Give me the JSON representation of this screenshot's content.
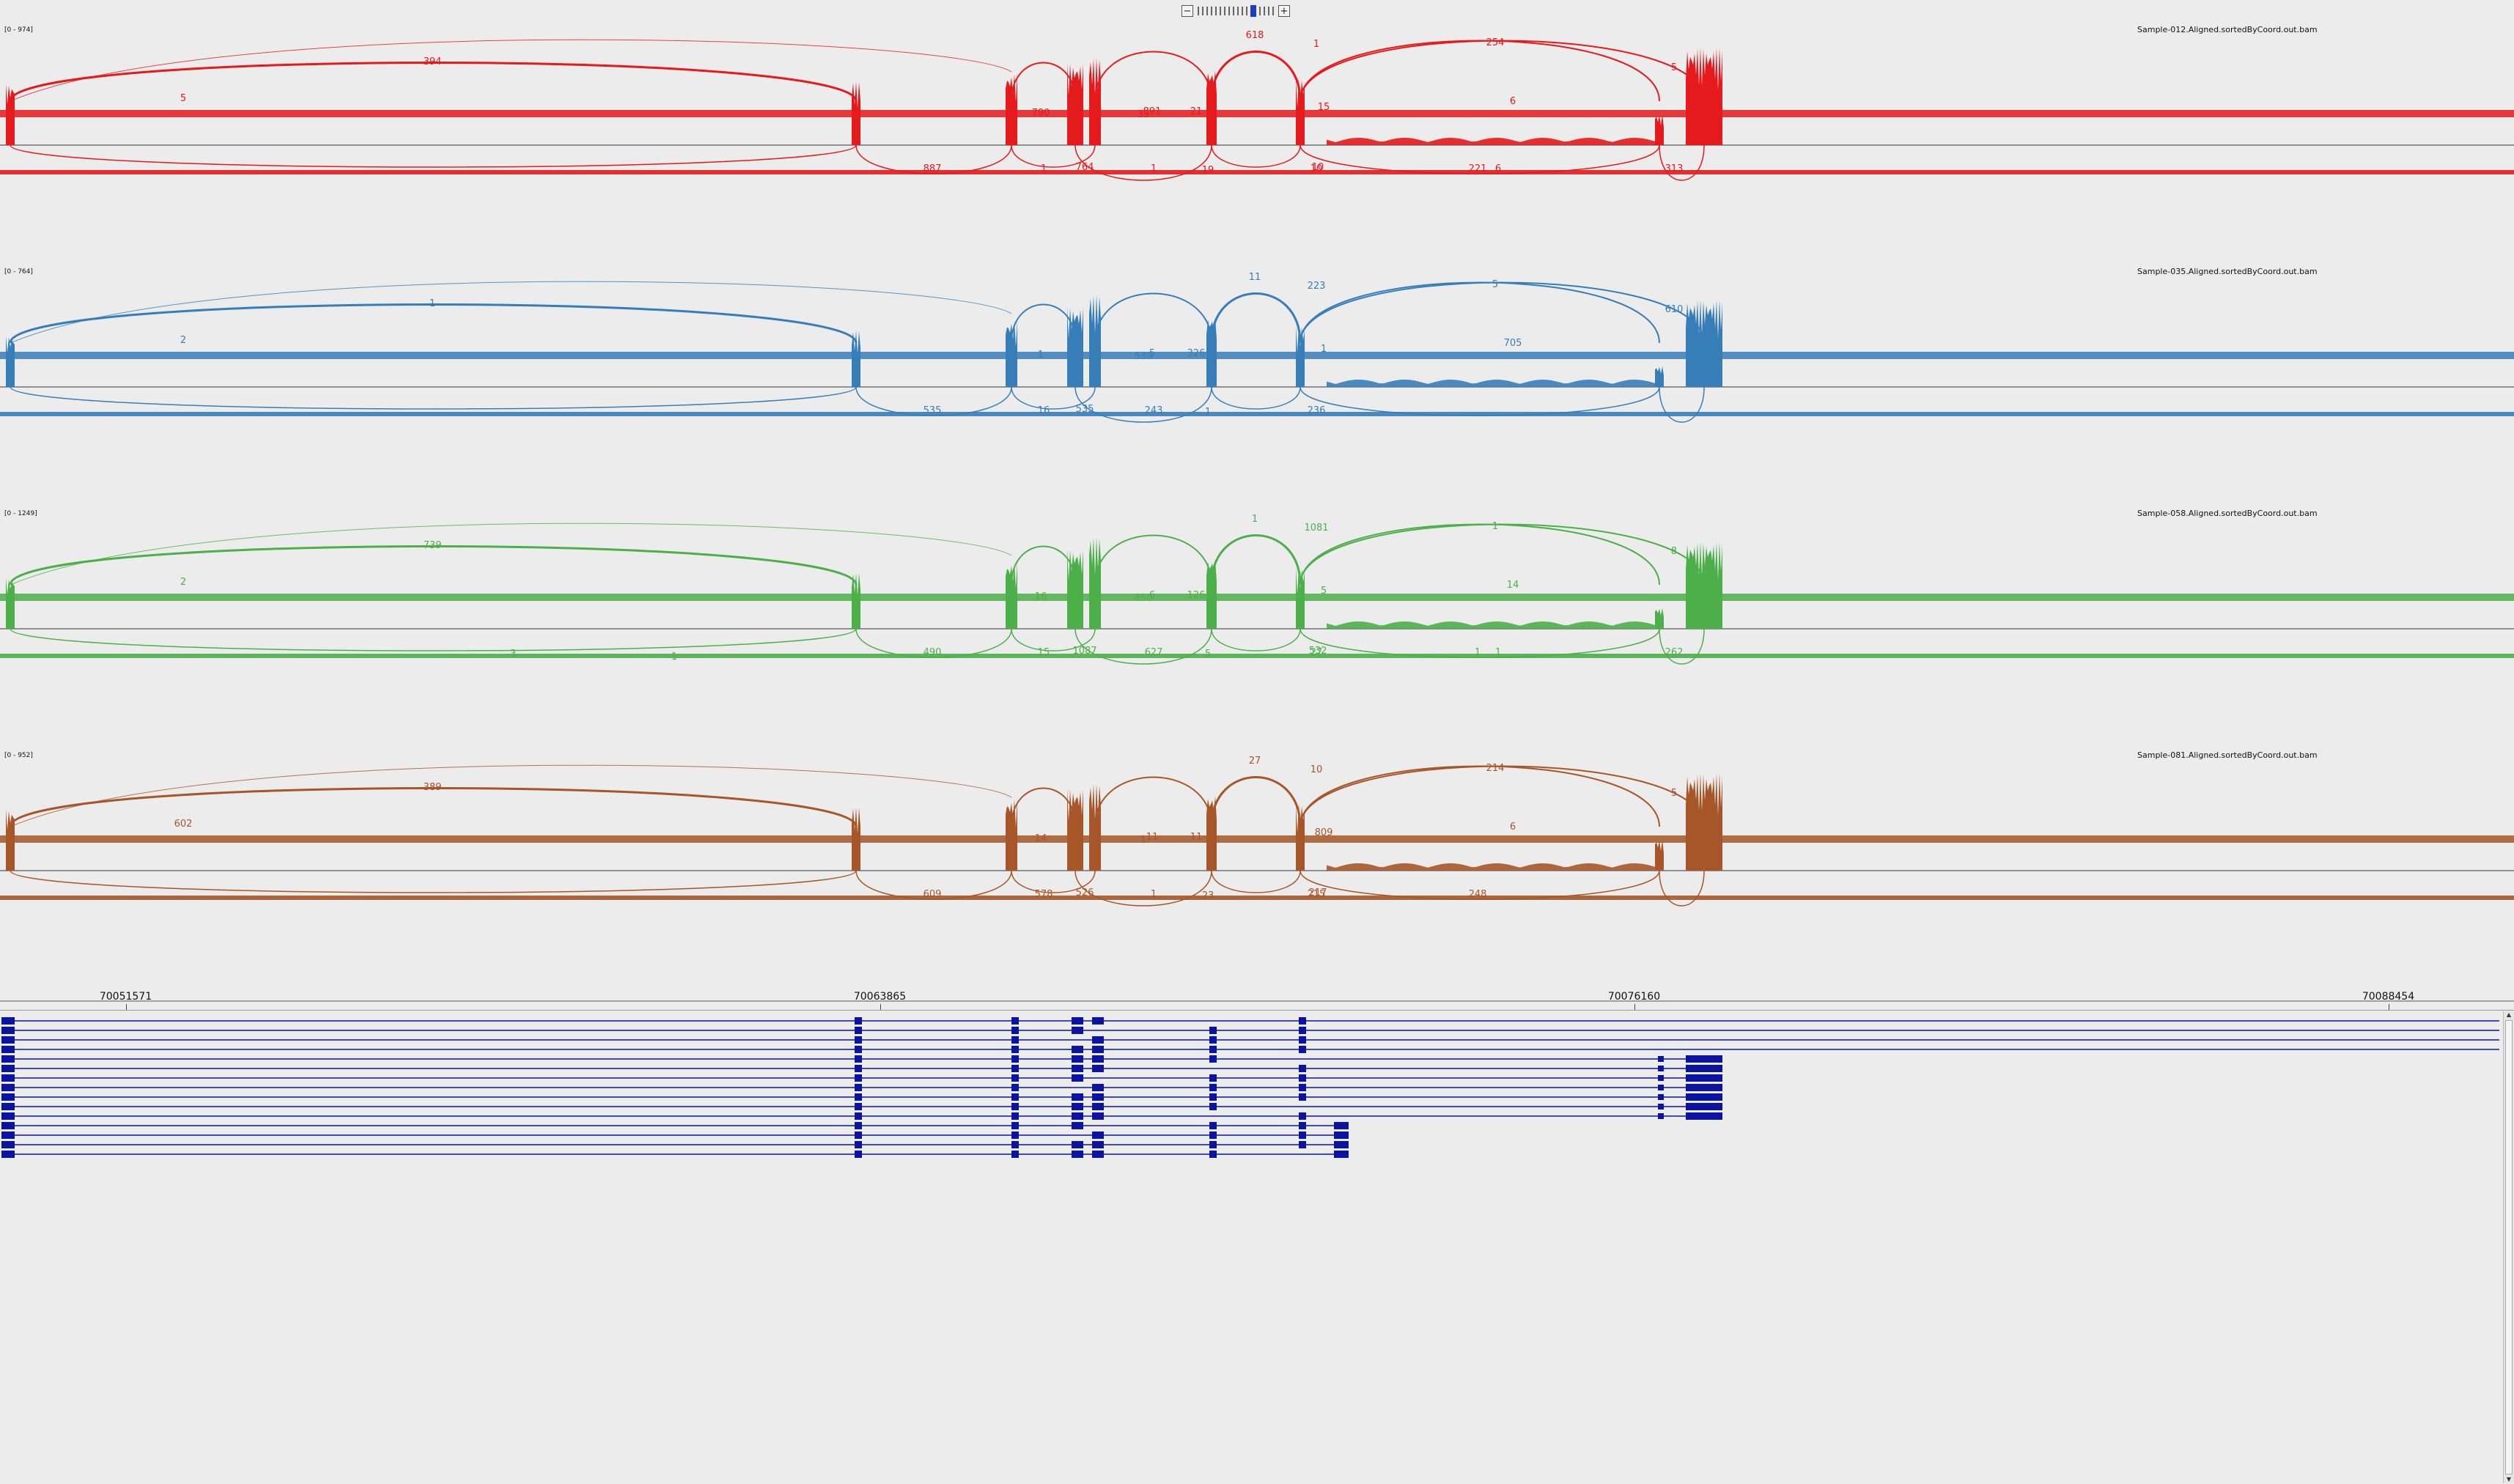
{
  "zoom": {
    "minus_label": "−",
    "plus_label": "+",
    "tick_count": 17,
    "active_tick": 12
  },
  "tracks": [
    {
      "id": "s012",
      "range": "[0 - 974]",
      "name": "Sample-012.Aligned.sortedByCoord.out.bam",
      "color": "#e41a1c",
      "labels": [
        {
          "t": "394"
        },
        {
          "t": "5"
        },
        {
          "t": "618"
        },
        {
          "t": "1"
        },
        {
          "t": "254"
        },
        {
          "t": "5"
        },
        {
          "t": "6"
        },
        {
          "t": "15"
        },
        {
          "t": "790"
        },
        {
          "t": "891"
        },
        {
          "t": "21"
        },
        {
          "t": "33"
        },
        {
          "t": "19"
        },
        {
          "t": "887"
        },
        {
          "t": "1"
        },
        {
          "t": "764"
        },
        {
          "t": "1"
        },
        {
          "t": "10"
        },
        {
          "t": "10"
        },
        {
          "t": "221"
        },
        {
          "t": "6"
        },
        {
          "t": "313"
        }
      ]
    },
    {
      "id": "s035",
      "range": "[0 - 764]",
      "name": "Sample-035.Aligned.sortedByCoord.out.bam",
      "color": "#377eb8",
      "labels": [
        {
          "t": "1"
        },
        {
          "t": "2"
        },
        {
          "t": "11"
        },
        {
          "t": "223"
        },
        {
          "t": "5"
        },
        {
          "t": "610"
        },
        {
          "t": "705"
        },
        {
          "t": "1"
        },
        {
          "t": "1"
        },
        {
          "t": "5"
        },
        {
          "t": "326"
        },
        {
          "t": "539"
        },
        {
          "t": "1"
        },
        {
          "t": "535"
        },
        {
          "t": "16"
        },
        {
          "t": "535"
        },
        {
          "t": "243"
        },
        {
          "t": "236"
        }
      ]
    },
    {
      "id": "s058",
      "range": "[0 - 1249]",
      "name": "Sample-058.Aligned.sortedByCoord.out.bam",
      "color": "#4daf4a",
      "labels": [
        {
          "t": "739"
        },
        {
          "t": "2"
        },
        {
          "t": "1"
        },
        {
          "t": "1081"
        },
        {
          "t": "1"
        },
        {
          "t": "8"
        },
        {
          "t": "14"
        },
        {
          "t": "5"
        },
        {
          "t": "16"
        },
        {
          "t": "6"
        },
        {
          "t": "126"
        },
        {
          "t": "850"
        },
        {
          "t": "5"
        },
        {
          "t": "490"
        },
        {
          "t": "15"
        },
        {
          "t": "1087"
        },
        {
          "t": "627"
        },
        {
          "t": "27"
        },
        {
          "t": "532"
        },
        {
          "t": "1"
        },
        {
          "t": "1"
        },
        {
          "t": "262"
        },
        {
          "t": "3"
        },
        {
          "t": "1"
        }
      ]
    },
    {
      "id": "s081",
      "range": "[0 - 952]",
      "name": "Sample-081.Aligned.sortedByCoord.out.bam",
      "color": "#a65628",
      "labels": [
        {
          "t": "389"
        },
        {
          "t": "602"
        },
        {
          "t": "27"
        },
        {
          "t": "10"
        },
        {
          "t": "214"
        },
        {
          "t": "5"
        },
        {
          "t": "6"
        },
        {
          "t": "809"
        },
        {
          "t": "14"
        },
        {
          "t": "11"
        },
        {
          "t": "11"
        },
        {
          "t": "1"
        },
        {
          "t": "23"
        },
        {
          "t": "609"
        },
        {
          "t": "578"
        },
        {
          "t": "526"
        },
        {
          "t": "1"
        },
        {
          "t": "215"
        },
        {
          "t": "217"
        },
        {
          "t": "248"
        }
      ]
    }
  ],
  "axis": {
    "ticks": [
      {
        "label": "70051571",
        "pos": 0.05
      },
      {
        "label": "70063865",
        "pos": 0.35
      },
      {
        "label": "70076160",
        "pos": 0.65
      },
      {
        "label": "70088454",
        "pos": 0.95
      }
    ]
  },
  "gene_color": "#0a14a0"
}
